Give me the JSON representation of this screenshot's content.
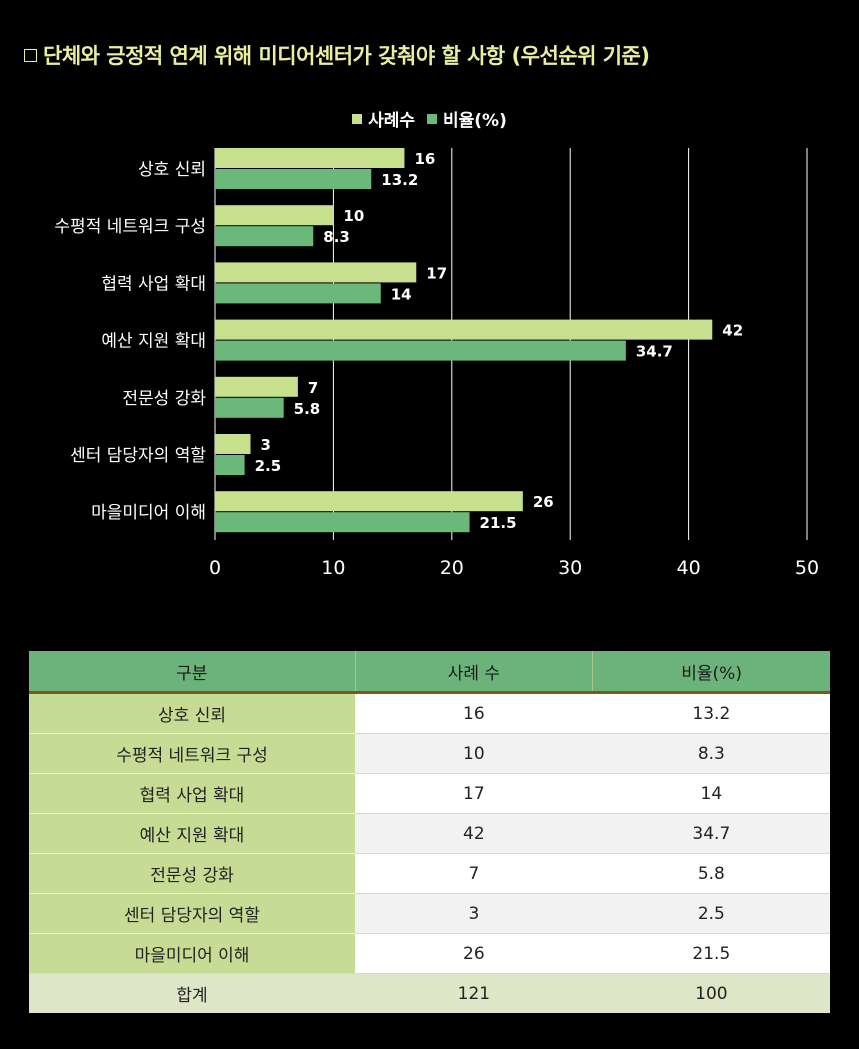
{
  "title": "단체와 긍정적 연계 위해 미디어센터가 갖춰야 할 사항 (우선순위 기준)",
  "chart_data": {
    "type": "bar",
    "orientation": "horizontal",
    "categories": [
      "상호 신뢰",
      "수평적 네트워크 구성",
      "협력 사업 확대",
      "예산 지원 확대",
      "전문성 강화",
      "센터 담당자의 역할",
      "마을미디어 이해"
    ],
    "series": [
      {
        "name": "사례수",
        "values": [
          16,
          10,
          17,
          42,
          7,
          3,
          26
        ],
        "color": "#c6e08e"
      },
      {
        "name": "비율(%)",
        "values": [
          13.2,
          8.3,
          14,
          34.7,
          5.8,
          2.5,
          21.5
        ],
        "color": "#6bb87b"
      }
    ],
    "xlim": [
      0,
      50
    ],
    "xticks": [
      0,
      10,
      20,
      30,
      40,
      50
    ],
    "grid": true,
    "legend": "top-center"
  },
  "table": {
    "headers": [
      "구분",
      "사례 수",
      "비율(%)"
    ],
    "rows": [
      [
        "상호 신뢰",
        "16",
        "13.2"
      ],
      [
        "수평적 네트워크 구성",
        "10",
        "8.3"
      ],
      [
        "협력 사업 확대",
        "17",
        "14"
      ],
      [
        "예산 지원 확대",
        "42",
        "34.7"
      ],
      [
        "전문성 강화",
        "7",
        "5.8"
      ],
      [
        "센터 담당자의 역할",
        "3",
        "2.5"
      ],
      [
        "마을미디어 이해",
        "26",
        "21.5"
      ]
    ],
    "total": [
      "합계",
      "121",
      "100"
    ]
  }
}
